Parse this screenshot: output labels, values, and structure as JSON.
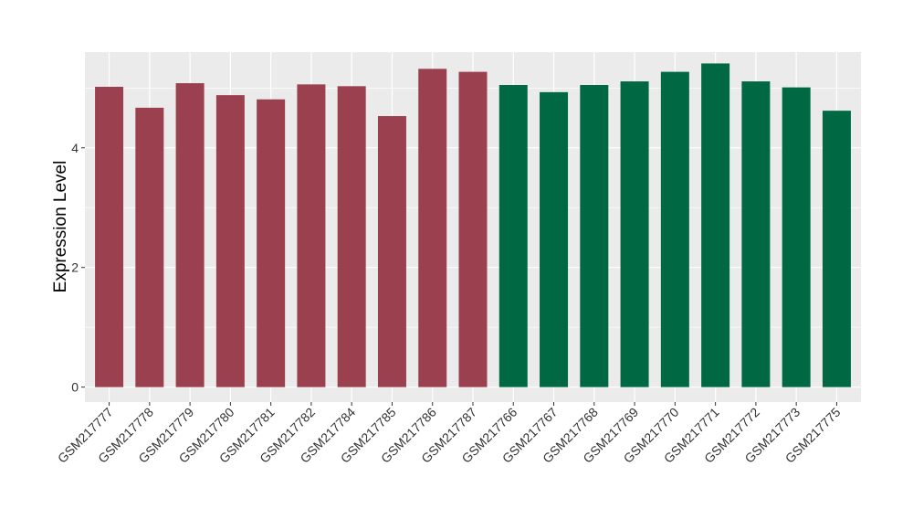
{
  "chart_data": {
    "type": "bar",
    "title": "",
    "xlabel": "",
    "ylabel": "Expression Level",
    "ylim": [
      -0.25,
      5.6
    ],
    "yticks": [
      0,
      2,
      4
    ],
    "grid": true,
    "legend": "none",
    "categories": [
      "GSM217777",
      "GSM217778",
      "GSM217779",
      "GSM217780",
      "GSM217781",
      "GSM217782",
      "GSM217784",
      "GSM217785",
      "GSM217786",
      "GSM217787",
      "GSM217766",
      "GSM217767",
      "GSM217768",
      "GSM217769",
      "GSM217770",
      "GSM217771",
      "GSM217772",
      "GSM217773",
      "GSM217775"
    ],
    "values": [
      5.02,
      4.67,
      5.08,
      4.88,
      4.81,
      5.06,
      5.03,
      4.53,
      5.32,
      5.27,
      5.05,
      4.93,
      5.05,
      5.11,
      5.27,
      5.41,
      5.11,
      5.01,
      4.62
    ],
    "bar_colors": [
      "#9a404e",
      "#9a404e",
      "#9a404e",
      "#9a404e",
      "#9a404e",
      "#9a404e",
      "#9a404e",
      "#9a404e",
      "#9a404e",
      "#9a404e",
      "#006843",
      "#006843",
      "#006843",
      "#006843",
      "#006843",
      "#006843",
      "#006843",
      "#006843",
      "#006843"
    ],
    "panel_background": "#ebebeb",
    "grid_color": "#ffffff"
  }
}
